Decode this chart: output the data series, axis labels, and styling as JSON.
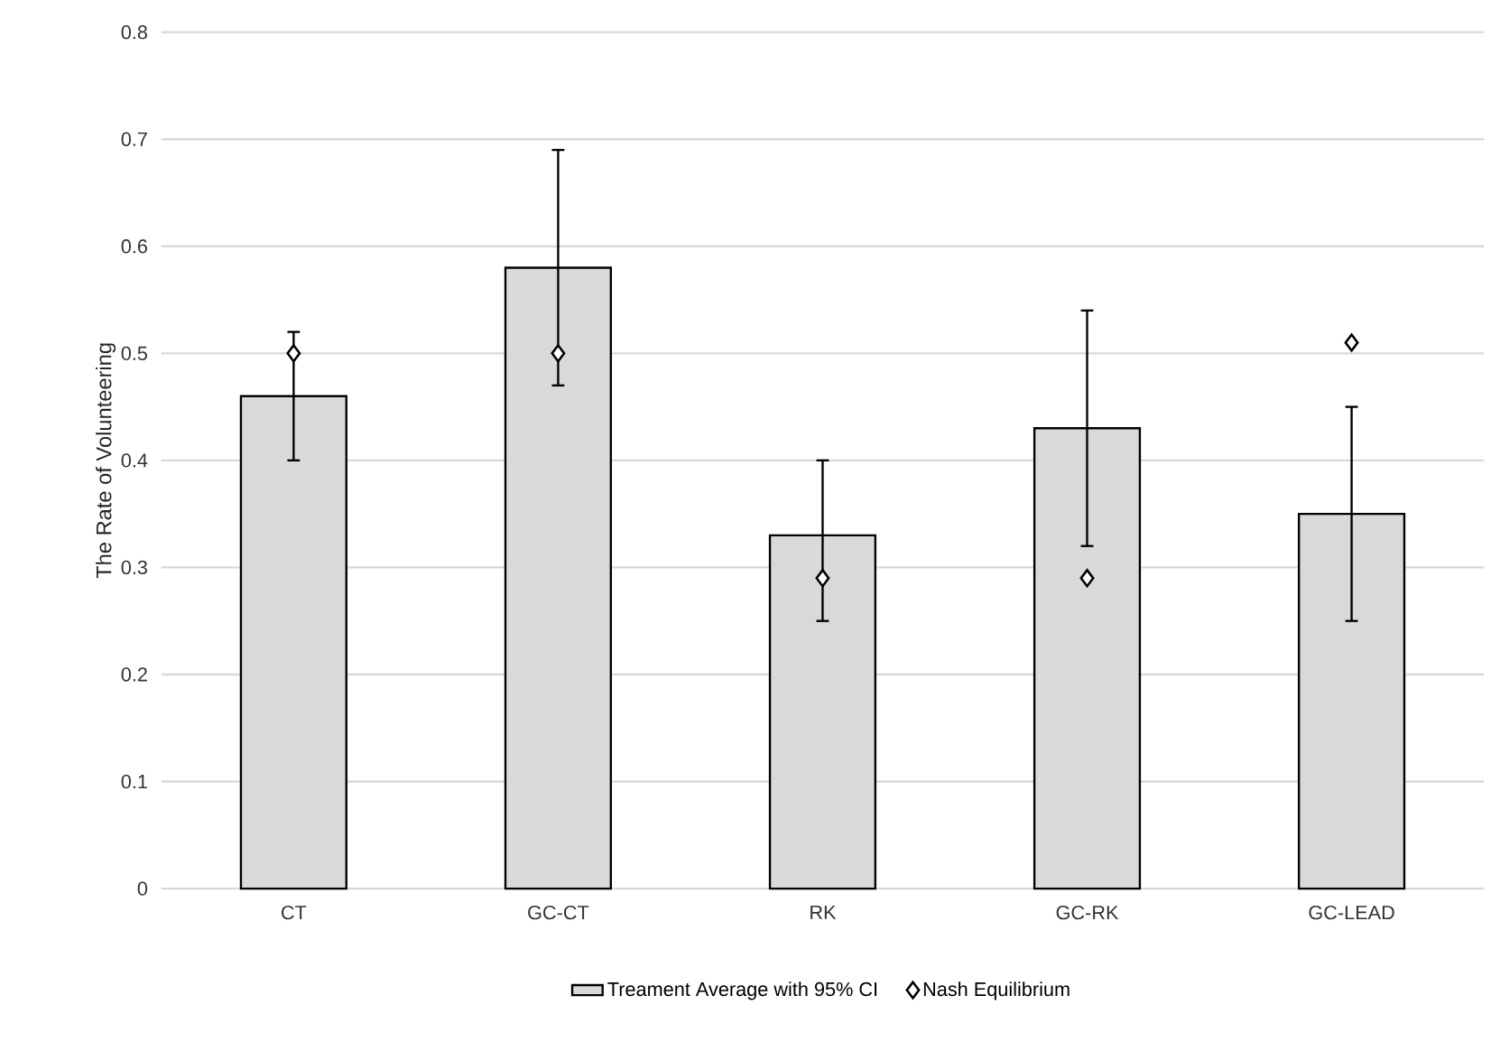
{
  "chart_data": {
    "type": "bar",
    "ylabel": "The Rate of Volunteering",
    "categories": [
      "CT",
      "GC-CT",
      "RK",
      "GC-RK",
      "GC-LEAD"
    ],
    "series": [
      {
        "name": "Treament Average with 95% CI",
        "color": "#d9d9d9",
        "values": [
          0.46,
          0.58,
          0.33,
          0.43,
          0.35
        ],
        "errors": [
          [
            0.4,
            0.52
          ],
          [
            0.47,
            0.69
          ],
          [
            0.25,
            0.4
          ],
          [
            0.32,
            0.54
          ],
          [
            0.25,
            0.45
          ]
        ]
      },
      {
        "name": "Nash Equilibrium",
        "type": "scatter",
        "color": "#ffffff",
        "marker": "diamond",
        "x": [
          "CT",
          "GC-CT",
          "RK",
          "GC-RK",
          "GC-LEAD"
        ],
        "values": [
          0.5,
          0.5,
          0.29,
          0.29,
          0.51
        ]
      }
    ],
    "ylim": [
      0,
      0.8
    ],
    "yticks": [
      0,
      0.1,
      0.2,
      0.3,
      0.4,
      0.5,
      0.6,
      0.7,
      0.8
    ],
    "grid": "y",
    "legend": "bottom"
  }
}
